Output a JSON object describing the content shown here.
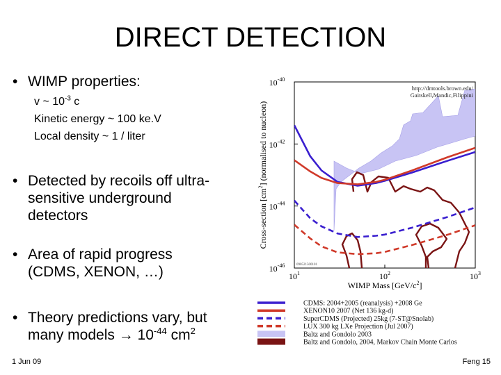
{
  "slide": {
    "title": "DIRECT DETECTION",
    "bullets": {
      "b1": "WIMP properties:",
      "b2": [
        "Detected by recoils off ultra-",
        "sensitive underground",
        "detectors"
      ],
      "b3": [
        "Area of rapid progress",
        "(CDMS, XENON, …)"
      ],
      "b4_line1": "Theory predictions vary, but",
      "b4_line2_pre": "many models ",
      "b4_line2_arrow": "→",
      "b4_line2_val": " 10",
      "b4_line2_exp": "-44",
      "b4_line2_unit": " cm",
      "b4_line2_unit_exp": "2"
    },
    "subitems": {
      "velocity_pre": "v ~ 10",
      "velocity_exp": "-3",
      "velocity_post": " c",
      "kinetic": "Kinetic energy ~ 100 ke.V",
      "density": "Local density ~ 1 / liter"
    },
    "footer": {
      "date": "1 Jun 09",
      "page": "Feng  15"
    },
    "bullet_glyph": "•"
  },
  "chart_data": {
    "type": "line",
    "title": "",
    "xlabel": "WIMP Mass [GeV/c",
    "xlabel_exp": "2",
    "xlabel_close": "]",
    "ylabel": "Cross-section [cm",
    "ylabel_exp": "2",
    "ylabel_close": "] (normalised to nucleon)",
    "x_scale": "log",
    "y_scale": "log",
    "xlim": [
      10,
      1000
    ],
    "ylim": [
      1e-46,
      1e-40
    ],
    "x_ticks": [
      {
        "base": "10",
        "exp": "1"
      },
      {
        "base": "10",
        "exp": "2"
      },
      {
        "base": "10",
        "exp": "3"
      }
    ],
    "y_ticks": [
      {
        "base": "10",
        "exp": "-40"
      },
      {
        "base": "10",
        "exp": "-42"
      },
      {
        "base": "10",
        "exp": "-44"
      },
      {
        "base": "10",
        "exp": "-46"
      }
    ],
    "url_line1": "http://dmtools.brown.edu/",
    "url_line2": "Gaitskell,Mandic,Filippini",
    "plot_id": "090521500101",
    "series": [
      {
        "name": "CDMS: 2004+2005 (reanalysis) +2008 Ge",
        "style": "solid",
        "color": "#3a1fcf",
        "points": [
          [
            10,
            4e-42
          ],
          [
            15,
            4e-43
          ],
          [
            20,
            1.4e-43
          ],
          [
            30,
            6e-44
          ],
          [
            50,
            4.5e-44
          ],
          [
            80,
            5.5e-44
          ],
          [
            100,
            6.5e-44
          ],
          [
            200,
            1.2e-43
          ],
          [
            500,
            2.9e-43
          ],
          [
            1000,
            5.5e-43
          ]
        ]
      },
      {
        "name": "XENON10 2007 (Net 136 kg-d)",
        "style": "solid",
        "color": "#d03a2a",
        "points": [
          [
            10,
            3e-43
          ],
          [
            15,
            1.3e-43
          ],
          [
            20,
            8e-44
          ],
          [
            30,
            5.5e-44
          ],
          [
            50,
            5e-44
          ],
          [
            80,
            6e-44
          ],
          [
            100,
            7e-44
          ],
          [
            200,
            1.4e-43
          ],
          [
            500,
            3.8e-43
          ],
          [
            1000,
            7.5e-43
          ]
        ]
      },
      {
        "name": "SuperCDMS (Projected) 25kg (7-ST@Snolab)",
        "style": "dashed",
        "color": "#3a1fcf",
        "points": [
          [
            10,
            1.5e-44
          ],
          [
            15,
            4e-45
          ],
          [
            20,
            2.2e-45
          ],
          [
            30,
            1.3e-45
          ],
          [
            50,
            1e-45
          ],
          [
            80,
            1.1e-45
          ],
          [
            100,
            1.2e-45
          ],
          [
            200,
            2e-45
          ],
          [
            500,
            4.5e-45
          ],
          [
            1000,
            9e-45
          ]
        ]
      },
      {
        "name": "LUX 300 kg LXe Projection (Jul 2007)",
        "style": "dashed",
        "color": "#d03a2a",
        "points": [
          [
            10,
            2.5e-45
          ],
          [
            15,
            9e-46
          ],
          [
            20,
            5e-46
          ],
          [
            30,
            3.2e-46
          ],
          [
            50,
            2.8e-46
          ],
          [
            80,
            3e-46
          ],
          [
            100,
            3.3e-46
          ],
          [
            200,
            5.5e-46
          ],
          [
            500,
            1.2e-45
          ],
          [
            1000,
            2.4e-45
          ]
        ]
      },
      {
        "name": "Baltz and Gondolo 2003",
        "style": "filled",
        "color": "#c8c4f4",
        "points": []
      },
      {
        "name": "Baltz and Gondolo, 2004, Markov Chain Monte Carlos",
        "style": "filled-outline",
        "color": "#7a1414",
        "points": []
      }
    ]
  }
}
